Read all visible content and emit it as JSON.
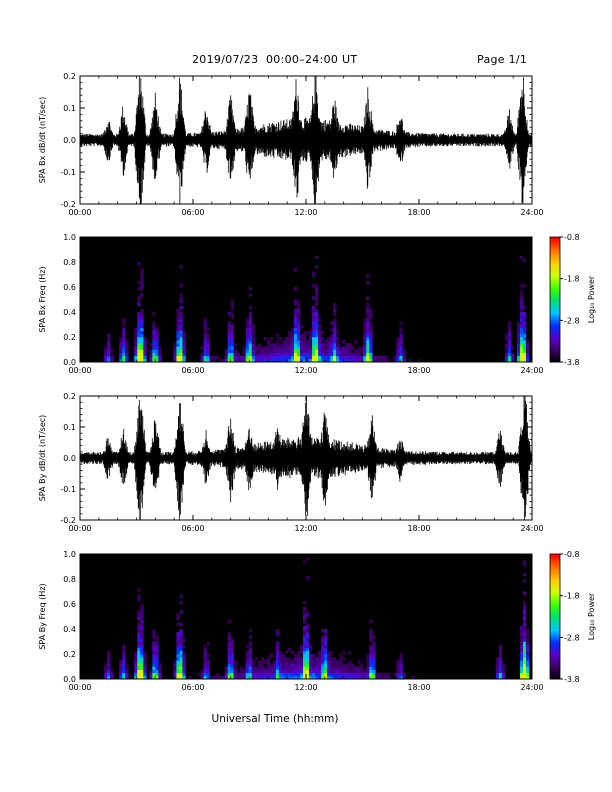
{
  "header": {
    "title": "2019/07/23  00:00–24:00 UT",
    "page": "Page 1/1"
  },
  "xaxis": {
    "label": "Universal Time (hh:mm)",
    "range_hours": [
      0,
      24
    ],
    "ticks": [
      "00:00",
      "06:00",
      "12:00",
      "18:00",
      "24:00"
    ]
  },
  "colorbar": {
    "label": "Log₁₀ Power",
    "range": [
      -3.8,
      -0.8
    ],
    "ticks": [
      "-0.8",
      "-1.8",
      "-2.8",
      "-3.8"
    ],
    "colormap": [
      "#000000",
      "#3a0060",
      "#5a00c8",
      "#0030ff",
      "#00c8ff",
      "#00e070",
      "#40ff00",
      "#d0ff00",
      "#ffcc00",
      "#ff7000",
      "#ff0000"
    ]
  },
  "chart_data": [
    {
      "type": "line",
      "panel": "bx-waveform",
      "ylabel": "SPA Bx dB/dt (nT/sec)",
      "ylim": [
        -0.2,
        0.2
      ],
      "yticks": [
        "0.2",
        "0.1",
        "0.0",
        "-0.1",
        "-0.2"
      ],
      "xlim": [
        0,
        24
      ],
      "baseline_amplitude": 0.02,
      "bursts": [
        {
          "hour": 1.5,
          "amplitude": 0.08
        },
        {
          "hour": 2.3,
          "amplitude": 0.12
        },
        {
          "hour": 3.2,
          "amplitude": 0.25
        },
        {
          "hour": 4.0,
          "amplitude": 0.15
        },
        {
          "hour": 5.3,
          "amplitude": 0.22
        },
        {
          "hour": 6.7,
          "amplitude": 0.12
        },
        {
          "hour": 8.0,
          "amplitude": 0.15
        },
        {
          "hour": 9.0,
          "amplitude": 0.18
        },
        {
          "hour": 11.5,
          "amplitude": 0.22
        },
        {
          "hour": 12.5,
          "amplitude": 0.25
        },
        {
          "hour": 13.5,
          "amplitude": 0.15
        },
        {
          "hour": 15.3,
          "amplitude": 0.18
        },
        {
          "hour": 17.0,
          "amplitude": 0.1
        },
        {
          "hour": 22.8,
          "amplitude": 0.1
        },
        {
          "hour": 23.5,
          "amplitude": 0.25
        }
      ]
    },
    {
      "type": "heatmap",
      "panel": "bx-spectrogram",
      "ylabel": "SPA Bx Freq (Hz)",
      "ylim": [
        0,
        1.0
      ],
      "yticks": [
        "1.0",
        "0.8",
        "0.6",
        "0.4",
        "0.2",
        "0.0"
      ],
      "xlim": [
        0,
        24
      ],
      "zlim": [
        -3.8,
        -0.8
      ]
    },
    {
      "type": "line",
      "panel": "by-waveform",
      "ylabel": "SPA By dB/dt (nT/sec)",
      "ylim": [
        -0.2,
        0.2
      ],
      "yticks": [
        "0.2",
        "0.1",
        "0.0",
        "-0.1",
        "-0.2"
      ],
      "xlim": [
        0,
        24
      ],
      "baseline_amplitude": 0.02,
      "bursts": [
        {
          "hour": 1.5,
          "amplitude": 0.08
        },
        {
          "hour": 2.3,
          "amplitude": 0.1
        },
        {
          "hour": 3.2,
          "amplitude": 0.25
        },
        {
          "hour": 4.0,
          "amplitude": 0.15
        },
        {
          "hour": 5.3,
          "amplitude": 0.22
        },
        {
          "hour": 6.7,
          "amplitude": 0.1
        },
        {
          "hour": 8.0,
          "amplitude": 0.15
        },
        {
          "hour": 9.0,
          "amplitude": 0.12
        },
        {
          "hour": 10.5,
          "amplitude": 0.12
        },
        {
          "hour": 12.0,
          "amplitude": 0.25
        },
        {
          "hour": 13.0,
          "amplitude": 0.18
        },
        {
          "hour": 15.5,
          "amplitude": 0.15
        },
        {
          "hour": 17.0,
          "amplitude": 0.08
        },
        {
          "hour": 22.3,
          "amplitude": 0.1
        },
        {
          "hour": 23.6,
          "amplitude": 0.25
        }
      ]
    },
    {
      "type": "heatmap",
      "panel": "by-spectrogram",
      "ylabel": "SPA By Freq (Hz)",
      "ylim": [
        0,
        1.0
      ],
      "yticks": [
        "1.0",
        "0.8",
        "0.6",
        "0.4",
        "0.2",
        "0.0"
      ],
      "xlim": [
        0,
        24
      ],
      "zlim": [
        -3.8,
        -0.8
      ]
    }
  ]
}
